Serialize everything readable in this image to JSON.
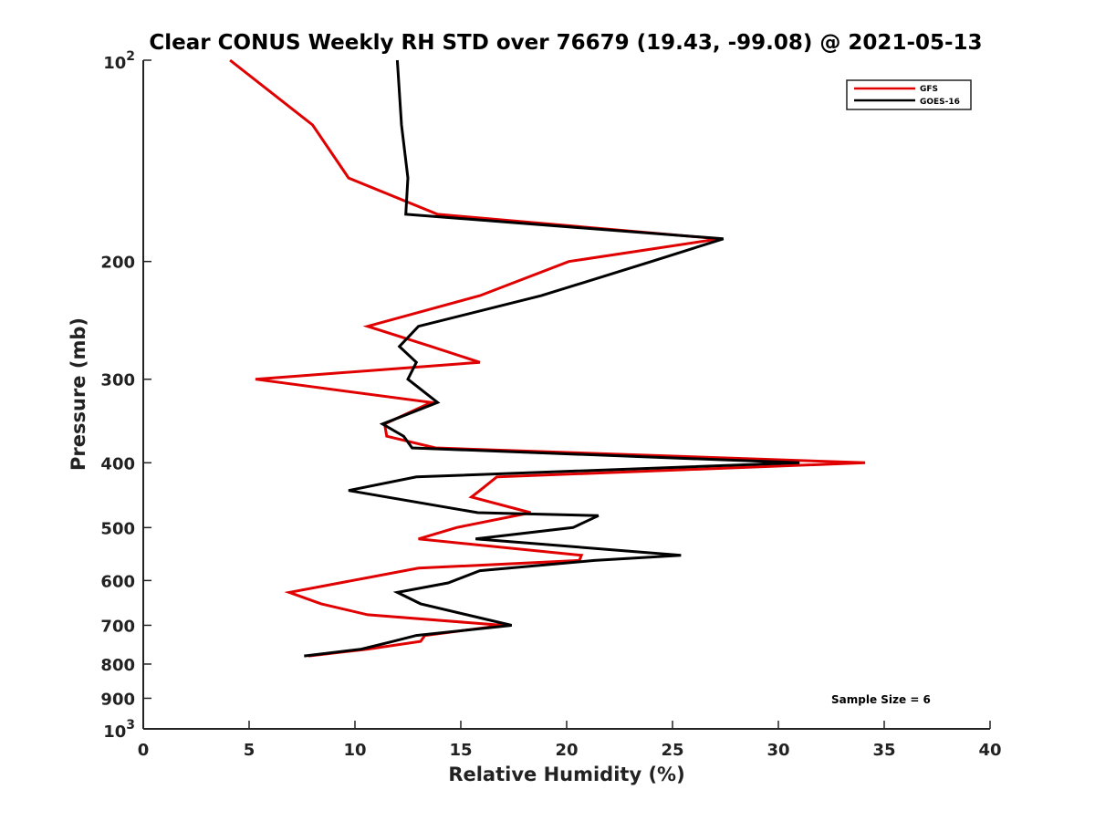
{
  "chart_data": {
    "type": "line",
    "title": "Clear CONUS Weekly RH STD over 76679 (19.43, -99.08) @ 2021-05-13",
    "xlabel": "Relative Humidity (%)",
    "ylabel": "Pressure (mb)",
    "xlim": [
      0,
      40
    ],
    "ylim": [
      1000,
      100
    ],
    "y_scale": "log",
    "y_reversed": true,
    "grid": false,
    "x_ticks": [
      0,
      5,
      10,
      15,
      20,
      25,
      30,
      35,
      40
    ],
    "x_tick_labels": [
      "0",
      "5",
      "10",
      "15",
      "20",
      "25",
      "30",
      "35",
      "40"
    ],
    "y_ticks": [
      {
        "value": 100,
        "base": "10",
        "exp": "2"
      },
      {
        "value": 200,
        "label": "200"
      },
      {
        "value": 300,
        "label": "300"
      },
      {
        "value": 400,
        "label": "400"
      },
      {
        "value": 500,
        "label": "500"
      },
      {
        "value": 600,
        "label": "600"
      },
      {
        "value": 700,
        "label": "700"
      },
      {
        "value": 800,
        "label": "800"
      },
      {
        "value": 900,
        "label": "900"
      },
      {
        "value": 1000,
        "base": "10",
        "exp": "3"
      }
    ],
    "legend": {
      "position": "top-right"
    },
    "annotation": "Sample Size = 6",
    "series": [
      {
        "name": "GFS",
        "color": "#e00000",
        "points": [
          [
            4.1,
            100
          ],
          [
            8.0,
            125
          ],
          [
            9.7,
            150
          ],
          [
            13.9,
            170
          ],
          [
            27.2,
            185
          ],
          [
            20.1,
            200
          ],
          [
            15.9,
            225
          ],
          [
            10.6,
            250
          ],
          [
            13.6,
            268
          ],
          [
            15.9,
            283
          ],
          [
            5.3,
            300
          ],
          [
            13.6,
            325
          ],
          [
            11.4,
            350
          ],
          [
            11.5,
            365
          ],
          [
            13.8,
            380
          ],
          [
            34.1,
            400
          ],
          [
            16.7,
            420
          ],
          [
            15.9,
            440
          ],
          [
            15.5,
            450
          ],
          [
            18.3,
            475
          ],
          [
            14.8,
            500
          ],
          [
            13.0,
            520
          ],
          [
            20.7,
            550
          ],
          [
            20.6,
            560
          ],
          [
            13.0,
            575
          ],
          [
            6.9,
            625
          ],
          [
            8.4,
            650
          ],
          [
            10.6,
            675
          ],
          [
            17.0,
            700
          ],
          [
            13.3,
            725
          ],
          [
            13.1,
            740
          ],
          [
            10.6,
            760
          ],
          [
            7.8,
            778
          ]
        ]
      },
      {
        "name": "GOES-16",
        "color": "#000000",
        "points": [
          [
            12.0,
            100
          ],
          [
            12.2,
            125
          ],
          [
            12.5,
            150
          ],
          [
            12.4,
            170
          ],
          [
            27.4,
            185
          ],
          [
            24.0,
            200
          ],
          [
            18.8,
            225
          ],
          [
            13.0,
            250
          ],
          [
            12.1,
            268
          ],
          [
            12.9,
            283
          ],
          [
            12.5,
            300
          ],
          [
            13.9,
            325
          ],
          [
            11.3,
            350
          ],
          [
            12.3,
            365
          ],
          [
            12.7,
            380
          ],
          [
            31.0,
            400
          ],
          [
            12.9,
            420
          ],
          [
            9.7,
            440
          ],
          [
            15.8,
            475
          ],
          [
            21.5,
            480
          ],
          [
            20.3,
            500
          ],
          [
            15.7,
            520
          ],
          [
            25.4,
            550
          ],
          [
            21.3,
            560
          ],
          [
            15.9,
            580
          ],
          [
            14.4,
            605
          ],
          [
            12.0,
            625
          ],
          [
            13.1,
            650
          ],
          [
            17.4,
            700
          ],
          [
            12.9,
            725
          ],
          [
            11.8,
            740
          ],
          [
            10.3,
            760
          ],
          [
            7.6,
            778
          ]
        ]
      }
    ]
  }
}
